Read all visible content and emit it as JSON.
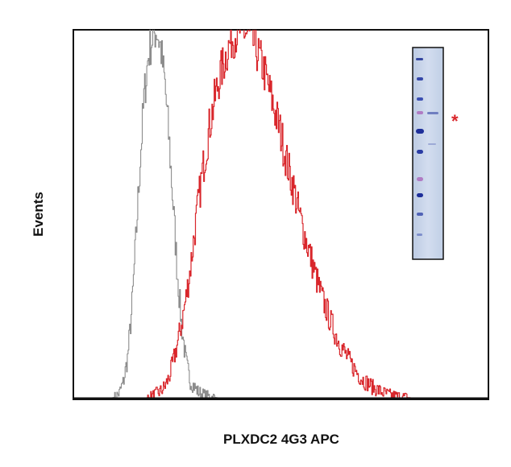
{
  "chart_data": {
    "type": "line",
    "title": "",
    "xlabel": "PLXDC2 4G3 APC",
    "ylabel": "Events",
    "xlim": [
      0,
      100
    ],
    "ylim": [
      0,
      100
    ],
    "grid": false,
    "legend": "none",
    "x_ticks_labeled": false,
    "y_ticks_labeled": false,
    "series": [
      {
        "color": "#8c8c8c",
        "x": [
          8.5,
          10,
          11,
          12,
          13,
          14,
          15,
          16,
          17,
          18,
          19,
          20,
          21,
          22,
          23,
          24,
          25,
          26,
          27,
          28,
          30,
          32,
          34,
          36,
          38
        ],
        "values": [
          0,
          0.4,
          1.5,
          4.5,
          11,
          24,
          43,
          64,
          82,
          93,
          98,
          100,
          95,
          85,
          70,
          52,
          34,
          20,
          10.5,
          5,
          1.8,
          0.7,
          0.3,
          0.1,
          0
        ]
      },
      {
        "color": "#d9262b",
        "x": [
          17,
          19,
          21,
          22,
          23,
          24,
          25,
          26,
          27,
          28,
          29,
          30,
          31,
          32,
          33,
          34,
          35,
          36,
          37,
          38,
          39,
          40,
          41,
          42,
          43,
          44,
          45,
          46,
          47,
          48,
          49,
          50,
          51,
          52,
          53,
          54,
          55,
          56,
          57,
          58,
          59,
          60,
          61,
          62,
          63,
          64,
          65,
          66,
          67,
          68,
          69,
          70,
          71,
          72,
          73,
          74,
          75,
          76,
          77,
          78,
          79,
          80,
          81,
          82,
          83,
          84,
          85,
          86,
          87,
          88,
          90,
          92,
          94,
          96,
          98,
          100
        ],
        "values": [
          0,
          0.7,
          2,
          3.3,
          5.8,
          9.9,
          14.9,
          20.3,
          26.8,
          34.4,
          43.7,
          52.8,
          61.1,
          68.5,
          75.7,
          81.1,
          86.6,
          90.4,
          94.2,
          97.5,
          98.7,
          99.9,
          99.7,
          98.6,
          97.3,
          94.4,
          91.9,
          88.4,
          84.2,
          79.9,
          75.8,
          71.4,
          66,
          61.2,
          57.1,
          51.7,
          47.2,
          42.9,
          38.8,
          34.5,
          30.6,
          26.8,
          23.9,
          20.6,
          17.8,
          15.2,
          13.1,
          11,
          9.1,
          7.6,
          6,
          4.8,
          4.1,
          3.1,
          2.6,
          1.9,
          1.4,
          1,
          0.8,
          0.6,
          0.45,
          0.32,
          0.22,
          0.15,
          0.1,
          0.07,
          0.05,
          0.03,
          0.02,
          0.01,
          0.01,
          0,
          0,
          0,
          0,
          0
        ]
      }
    ],
    "annotations": [
      {
        "text": "*",
        "color": "#d9262b"
      }
    ],
    "inset": {
      "description_type": "western-blot-image",
      "background_color": "#c9d6ea",
      "band_color": "#1e2f9a",
      "marker_color": "#b07cc4"
    }
  }
}
